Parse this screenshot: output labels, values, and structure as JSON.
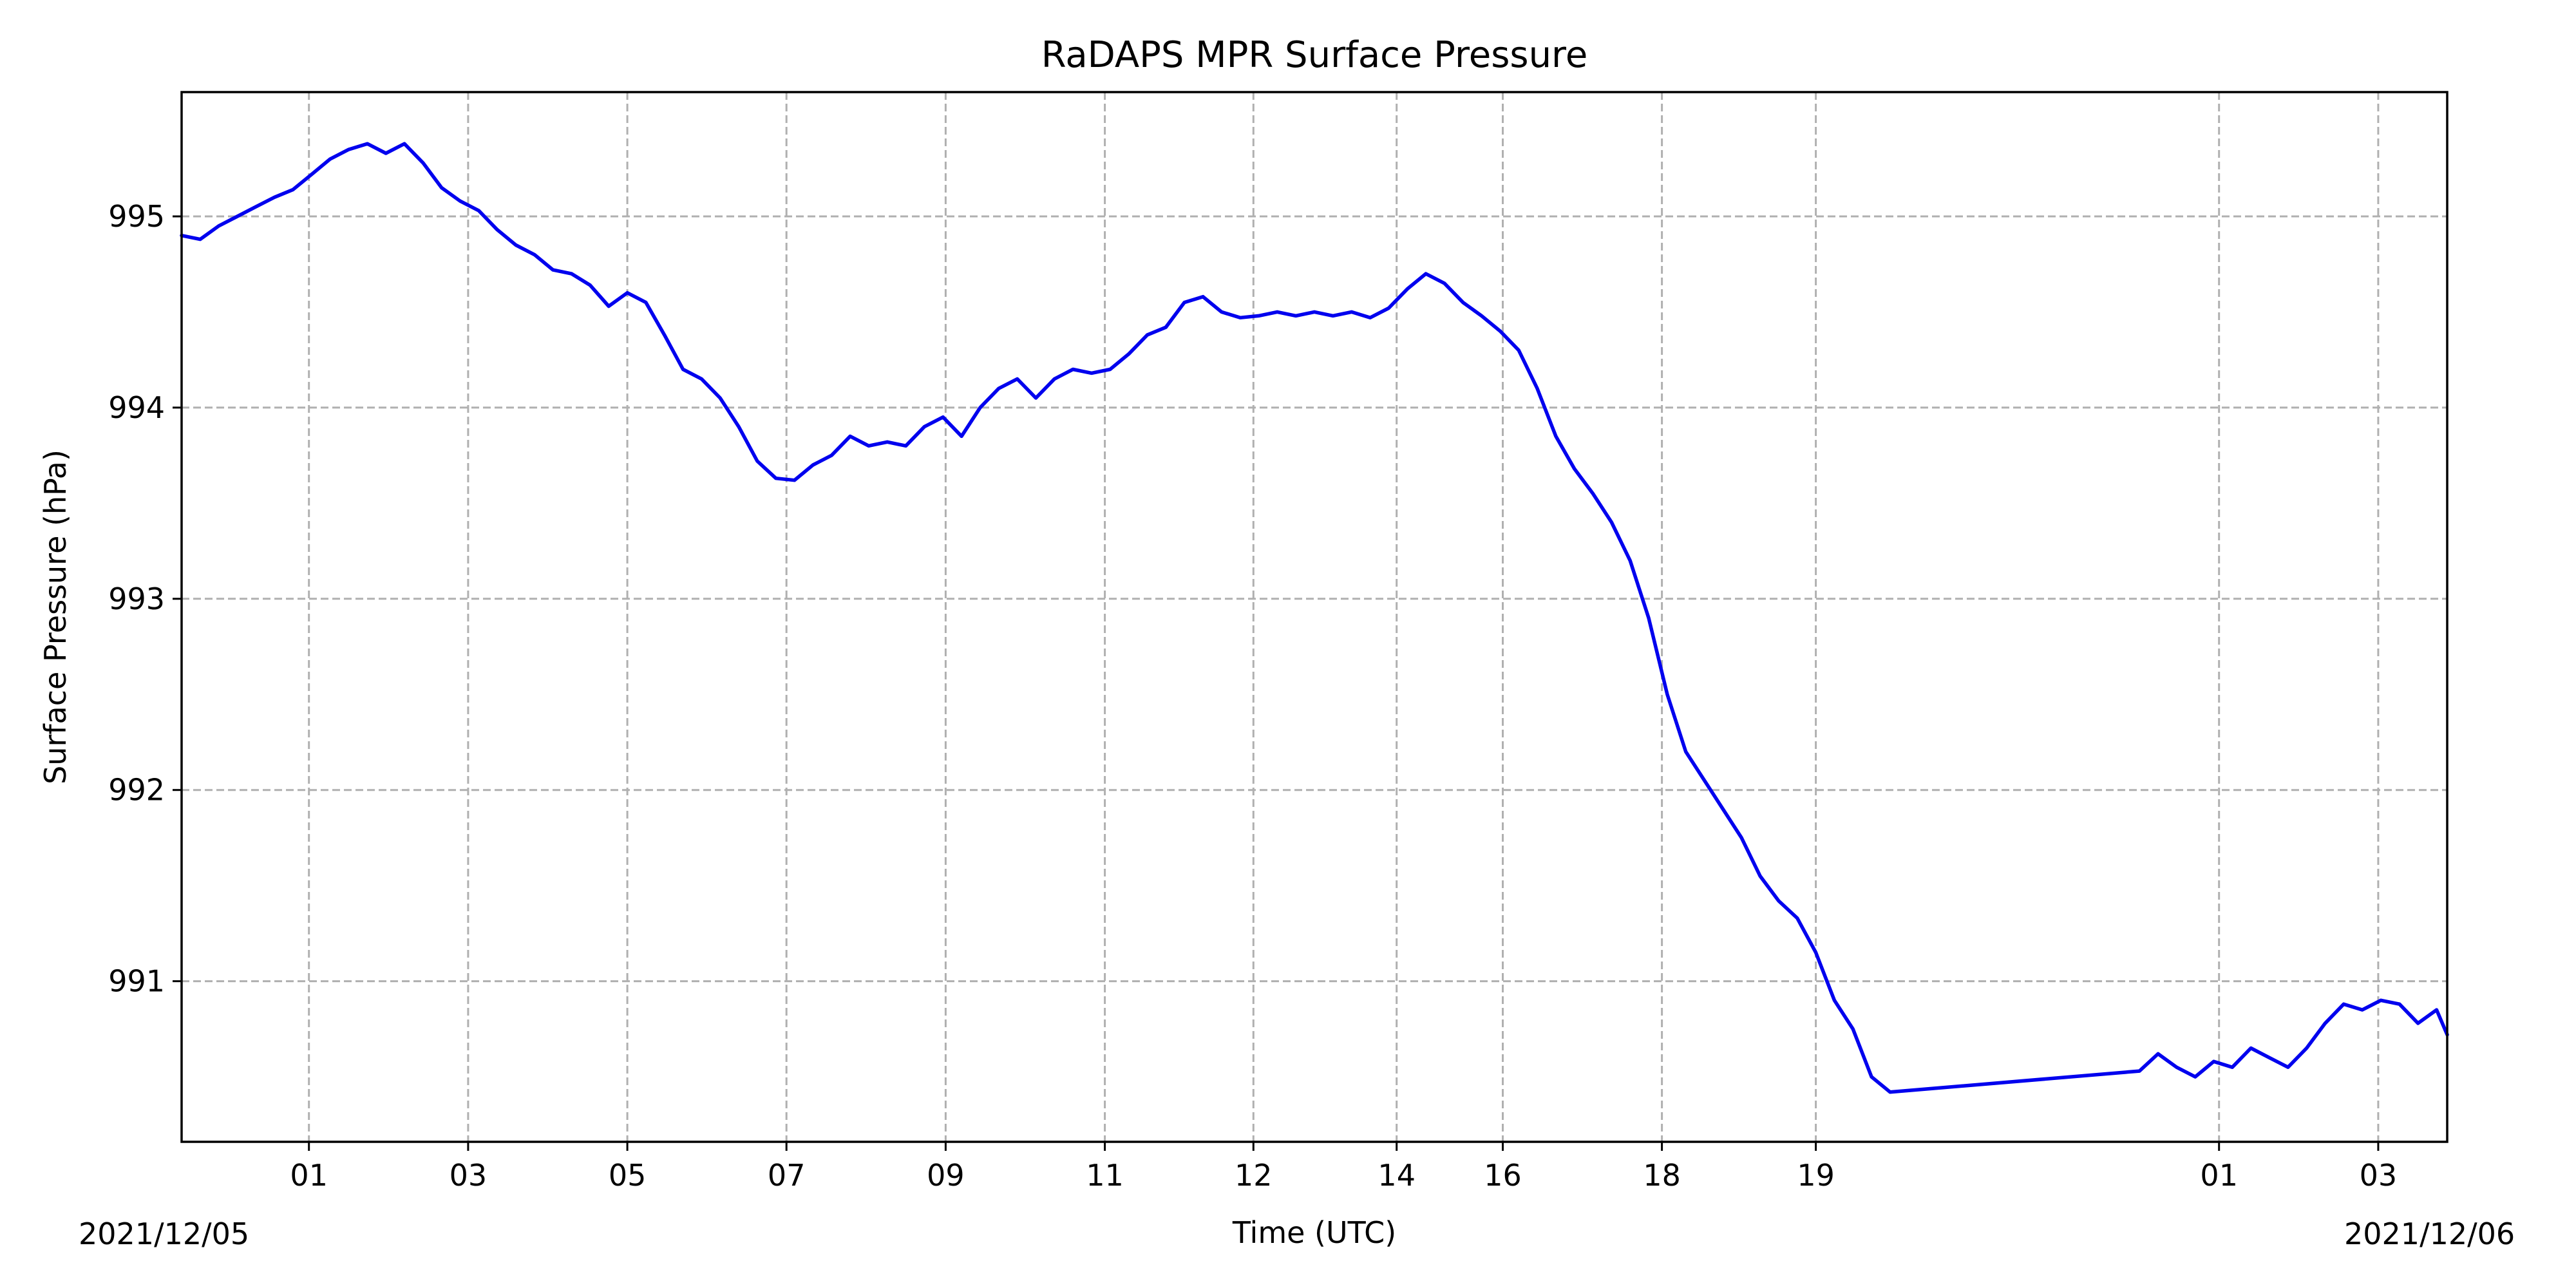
{
  "chart_data": {
    "type": "line",
    "title": "RaDAPS MPR Surface Pressure",
    "xlabel": "Time (UTC)",
    "ylabel": "Surface Pressure (hPa)",
    "xlim": [
      "2021-12-04T23:24",
      "2021-12-06T03:52"
    ],
    "ylim": [
      990.16,
      995.65
    ],
    "grid": true,
    "line_color": "#0000ee",
    "x_date_labels": {
      "left": "2021/12/05",
      "right": "2021/12/06"
    },
    "x_ticks": [
      {
        "t": "2021-12-05T01:00",
        "label": "01"
      },
      {
        "t": "2021-12-05T03:00",
        "label": "03"
      },
      {
        "t": "2021-12-05T05:00",
        "label": "05"
      },
      {
        "t": "2021-12-05T07:00",
        "label": "07"
      },
      {
        "t": "2021-12-05T09:00",
        "label": "09"
      },
      {
        "t": "2021-12-05T11:00",
        "label": "11"
      },
      {
        "t": "2021-12-05T12:52",
        "label": "12"
      },
      {
        "t": "2021-12-05T14:40",
        "label": "14"
      },
      {
        "t": "2021-12-05T16:00",
        "label": "16"
      },
      {
        "t": "2021-12-05T18:00",
        "label": "18"
      },
      {
        "t": "2021-12-05T19:56",
        "label": "19"
      },
      {
        "t": "2021-12-06T01:00",
        "label": "01"
      },
      {
        "t": "2021-12-06T03:00",
        "label": "03"
      }
    ],
    "y_ticks": [
      991,
      992,
      993,
      994,
      995
    ],
    "series": [
      {
        "points": [
          [
            "2021-12-04T23:24",
            994.9
          ],
          [
            "2021-12-04T23:38",
            994.88
          ],
          [
            "2021-12-04T23:52",
            994.95
          ],
          [
            "2021-12-05T00:06",
            995.0
          ],
          [
            "2021-12-05T00:20",
            995.05
          ],
          [
            "2021-12-05T00:34",
            995.1
          ],
          [
            "2021-12-05T00:48",
            995.14
          ],
          [
            "2021-12-05T01:02",
            995.22
          ],
          [
            "2021-12-05T01:16",
            995.3
          ],
          [
            "2021-12-05T01:30",
            995.35
          ],
          [
            "2021-12-05T01:44",
            995.38
          ],
          [
            "2021-12-05T01:58",
            995.33
          ],
          [
            "2021-12-05T02:12",
            995.38
          ],
          [
            "2021-12-05T02:26",
            995.28
          ],
          [
            "2021-12-05T02:40",
            995.15
          ],
          [
            "2021-12-05T02:54",
            995.08
          ],
          [
            "2021-12-05T03:08",
            995.03
          ],
          [
            "2021-12-05T03:22",
            994.93
          ],
          [
            "2021-12-05T03:36",
            994.85
          ],
          [
            "2021-12-05T03:50",
            994.8
          ],
          [
            "2021-12-05T04:04",
            994.72
          ],
          [
            "2021-12-05T04:18",
            994.7
          ],
          [
            "2021-12-05T04:32",
            994.64
          ],
          [
            "2021-12-05T04:46",
            994.53
          ],
          [
            "2021-12-05T05:00",
            994.6
          ],
          [
            "2021-12-05T05:14",
            994.55
          ],
          [
            "2021-12-05T05:28",
            994.38
          ],
          [
            "2021-12-05T05:42",
            994.2
          ],
          [
            "2021-12-05T05:56",
            994.15
          ],
          [
            "2021-12-05T06:10",
            994.05
          ],
          [
            "2021-12-05T06:24",
            993.9
          ],
          [
            "2021-12-05T06:38",
            993.72
          ],
          [
            "2021-12-05T06:52",
            993.63
          ],
          [
            "2021-12-05T07:06",
            993.62
          ],
          [
            "2021-12-05T07:20",
            993.7
          ],
          [
            "2021-12-05T07:34",
            993.75
          ],
          [
            "2021-12-05T07:48",
            993.85
          ],
          [
            "2021-12-05T08:02",
            993.8
          ],
          [
            "2021-12-05T08:16",
            993.82
          ],
          [
            "2021-12-05T08:30",
            993.8
          ],
          [
            "2021-12-05T08:44",
            993.9
          ],
          [
            "2021-12-05T08:58",
            993.95
          ],
          [
            "2021-12-05T09:12",
            993.85
          ],
          [
            "2021-12-05T09:26",
            994.0
          ],
          [
            "2021-12-05T09:40",
            994.1
          ],
          [
            "2021-12-05T09:54",
            994.15
          ],
          [
            "2021-12-05T10:08",
            994.05
          ],
          [
            "2021-12-05T10:22",
            994.15
          ],
          [
            "2021-12-05T10:36",
            994.2
          ],
          [
            "2021-12-05T10:50",
            994.18
          ],
          [
            "2021-12-05T11:04",
            994.2
          ],
          [
            "2021-12-05T11:18",
            994.28
          ],
          [
            "2021-12-05T11:32",
            994.38
          ],
          [
            "2021-12-05T11:46",
            994.42
          ],
          [
            "2021-12-05T12:00",
            994.55
          ],
          [
            "2021-12-05T12:14",
            994.58
          ],
          [
            "2021-12-05T12:28",
            994.5
          ],
          [
            "2021-12-05T12:42",
            994.47
          ],
          [
            "2021-12-05T12:56",
            994.48
          ],
          [
            "2021-12-05T13:10",
            994.5
          ],
          [
            "2021-12-05T13:24",
            994.48
          ],
          [
            "2021-12-05T13:38",
            994.5
          ],
          [
            "2021-12-05T13:52",
            994.48
          ],
          [
            "2021-12-05T14:06",
            994.5
          ],
          [
            "2021-12-05T14:20",
            994.47
          ],
          [
            "2021-12-05T14:34",
            994.52
          ],
          [
            "2021-12-05T14:48",
            994.62
          ],
          [
            "2021-12-05T15:02",
            994.7
          ],
          [
            "2021-12-05T15:16",
            994.65
          ],
          [
            "2021-12-05T15:30",
            994.55
          ],
          [
            "2021-12-05T15:44",
            994.48
          ],
          [
            "2021-12-05T15:58",
            994.4
          ],
          [
            "2021-12-05T16:12",
            994.3
          ],
          [
            "2021-12-05T16:26",
            994.1
          ],
          [
            "2021-12-05T16:40",
            993.85
          ],
          [
            "2021-12-05T16:54",
            993.68
          ],
          [
            "2021-12-05T17:08",
            993.55
          ],
          [
            "2021-12-05T17:22",
            993.4
          ],
          [
            "2021-12-05T17:36",
            993.2
          ],
          [
            "2021-12-05T17:50",
            992.9
          ],
          [
            "2021-12-05T18:04",
            992.5
          ],
          [
            "2021-12-05T18:18",
            992.2
          ],
          [
            "2021-12-05T18:32",
            992.05
          ],
          [
            "2021-12-05T18:46",
            991.9
          ],
          [
            "2021-12-05T19:00",
            991.75
          ],
          [
            "2021-12-05T19:14",
            991.55
          ],
          [
            "2021-12-05T19:28",
            991.42
          ],
          [
            "2021-12-05T19:42",
            991.33
          ],
          [
            "2021-12-05T19:56",
            991.15
          ],
          [
            "2021-12-05T20:10",
            990.9
          ],
          [
            "2021-12-05T20:24",
            990.75
          ],
          [
            "2021-12-05T20:38",
            990.5
          ],
          [
            "2021-12-05T20:52",
            990.42
          ],
          [
            "2021-12-06T00:00",
            990.53
          ],
          [
            "2021-12-06T00:14",
            990.62
          ],
          [
            "2021-12-06T00:28",
            990.55
          ],
          [
            "2021-12-06T00:42",
            990.5
          ],
          [
            "2021-12-06T00:56",
            990.58
          ],
          [
            "2021-12-06T01:10",
            990.55
          ],
          [
            "2021-12-06T01:24",
            990.65
          ],
          [
            "2021-12-06T01:38",
            990.6
          ],
          [
            "2021-12-06T01:52",
            990.55
          ],
          [
            "2021-12-06T02:06",
            990.65
          ],
          [
            "2021-12-06T02:20",
            990.78
          ],
          [
            "2021-12-06T02:34",
            990.88
          ],
          [
            "2021-12-06T02:48",
            990.85
          ],
          [
            "2021-12-06T03:02",
            990.9
          ],
          [
            "2021-12-06T03:16",
            990.88
          ],
          [
            "2021-12-06T03:30",
            990.78
          ],
          [
            "2021-12-06T03:44",
            990.85
          ],
          [
            "2021-12-06T03:52",
            990.72
          ]
        ]
      }
    ]
  }
}
